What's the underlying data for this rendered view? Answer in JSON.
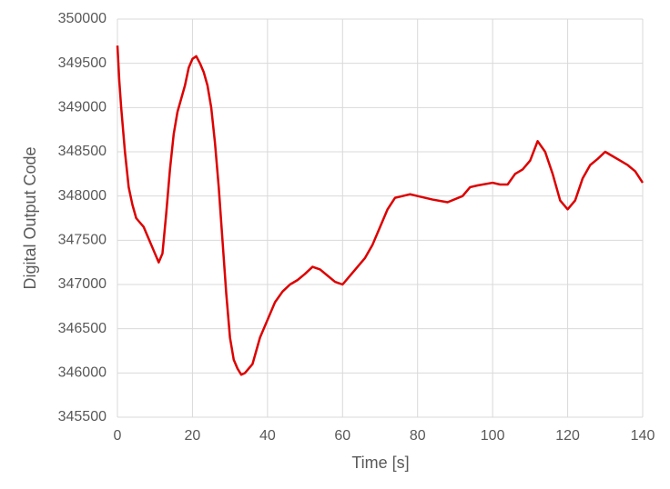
{
  "chart_data": {
    "type": "line",
    "x_label": "Time [s]",
    "y_label": "Digital Output Code",
    "x": [
      0,
      0.5,
      1,
      2,
      3,
      4,
      5,
      6,
      7,
      8,
      9,
      10,
      11,
      12,
      13,
      14,
      15,
      16,
      17,
      18,
      19,
      20,
      21,
      22,
      23,
      24,
      25,
      26,
      27,
      28,
      29,
      30,
      31,
      32,
      33,
      34,
      35,
      36,
      37,
      38,
      40,
      42,
      44,
      46,
      48,
      50,
      52,
      54,
      56,
      58,
      60,
      62,
      64,
      66,
      68,
      70,
      72,
      74,
      76,
      78,
      80,
      84,
      88,
      92,
      94,
      96,
      100,
      102,
      104,
      106,
      108,
      110,
      112,
      114,
      116,
      118,
      120,
      122,
      124,
      126,
      128,
      130,
      132,
      134,
      136,
      138,
      140
    ],
    "series": [
      {
        "name": "Digital Output Code",
        "color": "#dd0000",
        "values": [
          349700,
          349300,
          349000,
          348500,
          348100,
          347900,
          347750,
          347700,
          347650,
          347550,
          347450,
          347350,
          347250,
          347350,
          347800,
          348300,
          348700,
          348950,
          349100,
          349250,
          349450,
          349550,
          349580,
          349500,
          349400,
          349250,
          349000,
          348600,
          348100,
          347500,
          346900,
          346400,
          346150,
          346050,
          345980,
          346000,
          346050,
          346100,
          346250,
          346400,
          346600,
          346800,
          346920,
          347000,
          347050,
          347120,
          347200,
          347170,
          347100,
          347030,
          347000,
          347100,
          347200,
          347300,
          347450,
          347650,
          347850,
          347980,
          348000,
          348020,
          348000,
          347960,
          347930,
          348000,
          348100,
          348120,
          348150,
          348130,
          348130,
          348250,
          348300,
          348400,
          348620,
          348500,
          348250,
          347950,
          347850,
          347950,
          348200,
          348350,
          348420,
          348500,
          348450,
          348400,
          348350,
          348280,
          348150
        ]
      }
    ],
    "xlim": [
      0,
      140
    ],
    "xticks": [
      0,
      20,
      40,
      60,
      80,
      100,
      120,
      140
    ],
    "ylim": [
      345500,
      350000
    ],
    "yticks": [
      345500,
      346000,
      346500,
      347000,
      347500,
      348000,
      348500,
      349000,
      349500,
      350000
    ],
    "grid": true
  }
}
